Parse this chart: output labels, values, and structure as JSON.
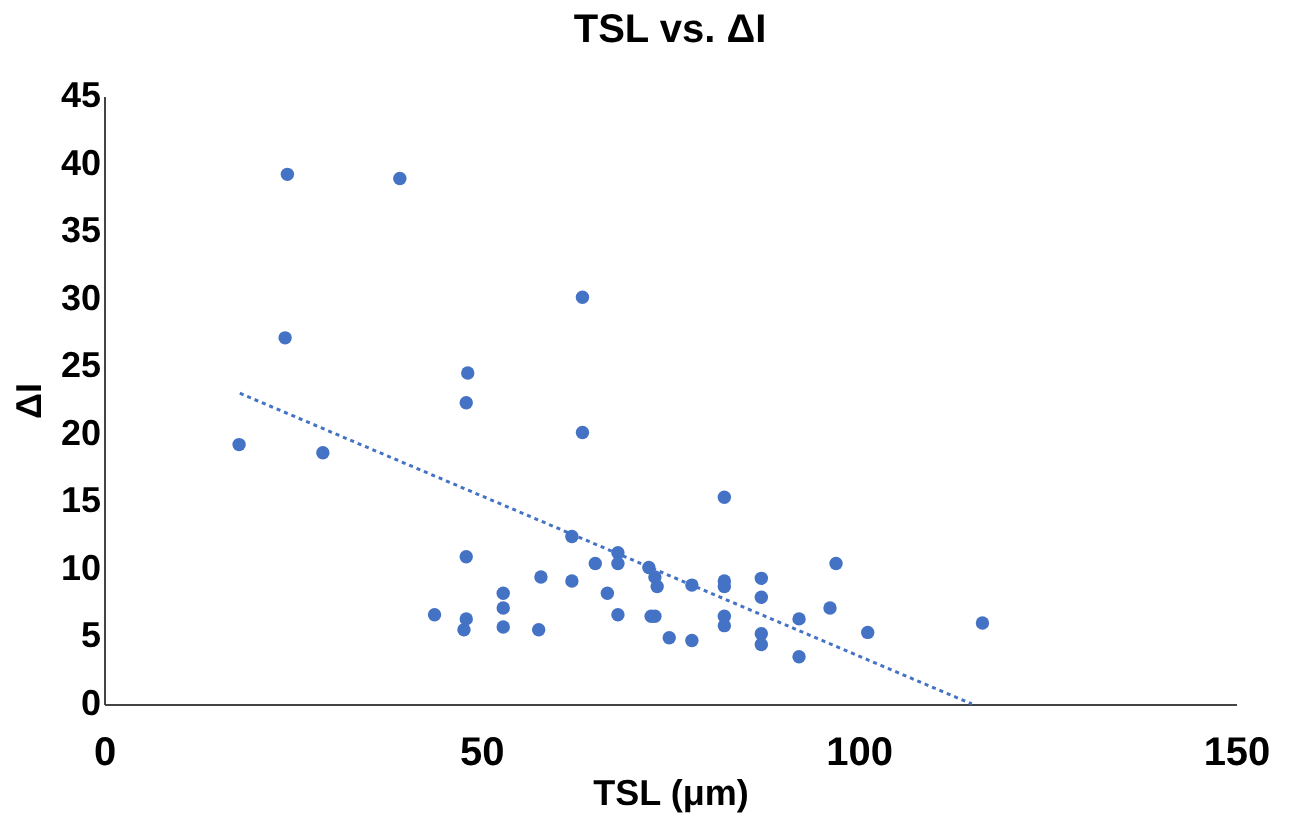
{
  "chart_data": {
    "type": "scatter",
    "title": "TSL vs. ΔI",
    "xlabel": "TSL (μm)",
    "ylabel": "ΔI",
    "xlim": [
      0,
      150
    ],
    "xticks": [
      0,
      50,
      100,
      150
    ],
    "ylim": [
      0,
      45
    ],
    "yticks": [
      0,
      5,
      10,
      15,
      20,
      25,
      30,
      35,
      40,
      45
    ],
    "grid": false,
    "marker": "circle",
    "series": [
      {
        "color": "#4472c4",
        "x": [
          17.9,
          24.3,
          24.0,
          29.0,
          39.2,
          48.0,
          48.2,
          48.0,
          47.7,
          48.0,
          43.8,
          52.9,
          52.9,
          52.9,
          57.6,
          57.9,
          62.0,
          62.0,
          63.4,
          63.4,
          65.1,
          66.7,
          68.1,
          68.1,
          68.1,
          72.2,
          73.0,
          73.3,
          72.5,
          73.0,
          74.9,
          77.9,
          77.9,
          82.2,
          82.2,
          82.2,
          82.2,
          82.2,
          87.1,
          87.1,
          87.1,
          87.1,
          92.1,
          92.1,
          96.2,
          97.0,
          101.2,
          116.4
        ],
        "values": [
          19.2,
          39.2,
          27.1,
          18.6,
          38.9,
          22.3,
          24.5,
          10.9,
          5.5,
          6.3,
          6.6,
          8.2,
          7.1,
          5.7,
          5.5,
          9.4,
          12.4,
          9.1,
          30.1,
          20.1,
          10.4,
          8.2,
          11.2,
          10.4,
          6.6,
          10.1,
          9.4,
          8.7,
          6.5,
          6.5,
          4.9,
          4.7,
          8.8,
          15.3,
          9.1,
          8.7,
          6.5,
          5.8,
          9.3,
          7.9,
          5.2,
          4.4,
          3.5,
          6.3,
          7.1,
          10.4,
          5.3,
          6.0
        ]
      },
      {
        "type": "line",
        "color": "#4472c4",
        "line_style": "dotted",
        "marker": "none",
        "x": [
          18,
          115
        ],
        "values": [
          23,
          0
        ]
      }
    ]
  }
}
